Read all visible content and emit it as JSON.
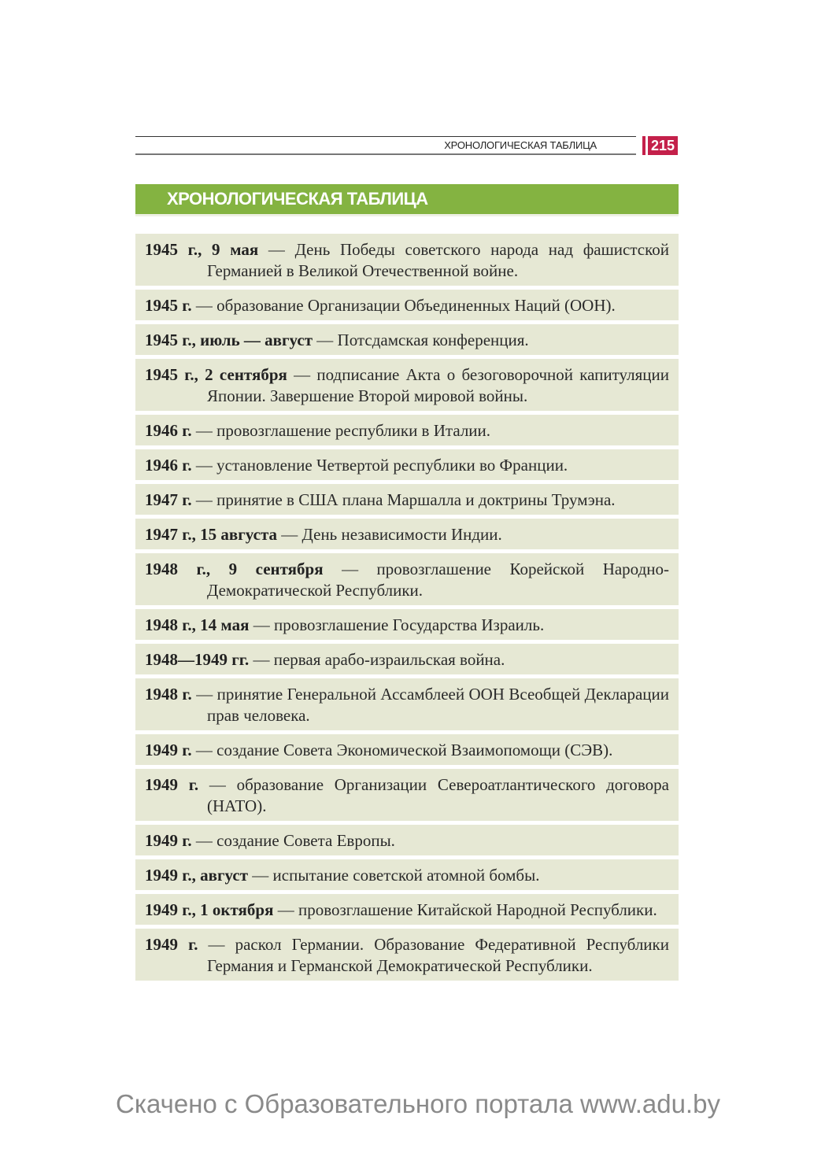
{
  "header": {
    "running_title": "ХРОНОЛОГИЧЕСКАЯ ТАБЛИЦА",
    "page_number": "215"
  },
  "section_title": "ХРОНОЛОГИЧЕСКАЯ ТАБЛИЦА",
  "colors": {
    "banner": "#84b341",
    "row_background": "#e6e8d4",
    "page_number_box": "#c4204a"
  },
  "entries": [
    {
      "date": "1945 г., 9 мая",
      "text": " — День Победы советского народа над фашистской Германией в Великой Отечественной войне."
    },
    {
      "date": "1945 г.",
      "text": " — образование Организации Объединенных Наций (ООН)."
    },
    {
      "date": "1945 г., июль — август",
      "text": " — Потсдамская конференция."
    },
    {
      "date": "1945 г., 2 сентября",
      "text": " — подписание Акта о безоговорочной капитуляции Японии. Завершение Второй мировой войны."
    },
    {
      "date": "1946 г.",
      "text": " — провозглашение республики в Италии."
    },
    {
      "date": "1946 г.",
      "text": " — установление Четвертой республики во Франции."
    },
    {
      "date": "1947 г.",
      "text": " — принятие в США плана Маршалла и доктрины Трумэна."
    },
    {
      "date": "1947 г., 15 августа",
      "text": " — День независимости Индии."
    },
    {
      "date": "1948 г., 9 сентября",
      "text": " — провозглашение Корейской Народно-Демократической Республики."
    },
    {
      "date": "1948 г., 14 мая",
      "text": " — провозглашение Государства Израиль."
    },
    {
      "date": "1948—1949 гг.",
      "text": " — первая арабо-израильская война."
    },
    {
      "date": "1948 г.",
      "text": " — принятие Генеральной Ассамблеей ООН Всеобщей Декларации прав человека."
    },
    {
      "date": "1949 г.",
      "text": " — создание Совета Экономической Взаимопомощи (СЭВ)."
    },
    {
      "date": "1949 г.",
      "text": " — образование Организации Североатлантического договора (НАТО)."
    },
    {
      "date": "1949 г.",
      "text": " — создание Совета Европы."
    },
    {
      "date": "1949 г., август",
      "text": " — испытание советской атомной бомбы."
    },
    {
      "date": "1949 г., 1 октября",
      "text": " — провозглашение Китайской Народной Республики."
    },
    {
      "date": "1949 г.",
      "text": " — раскол Германии. Образование Федеративной Республики Германия и Германской Демократической Республики."
    }
  ],
  "footer": "Скачено с Образовательного портала www.adu.by"
}
